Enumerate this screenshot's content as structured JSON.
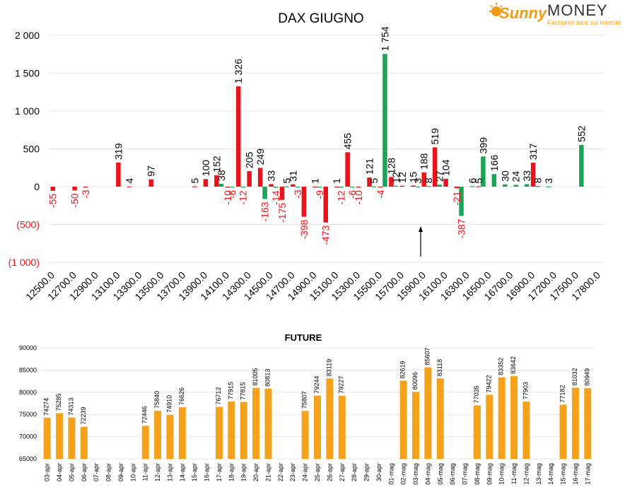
{
  "logo": {
    "brand_script": "Sunny",
    "brand_word": "MONEY",
    "tagline": "Facciamo luce sui mercati",
    "colors": {
      "orange": "#f39c12",
      "dark": "#333333"
    }
  },
  "colors": {
    "call": "#e8141b",
    "put": "#1aa457",
    "future": "#f4a11b",
    "annotation_neg": "#e8141b",
    "grid": "#e6e6e6"
  },
  "chart_data": [
    {
      "type": "bar",
      "title": "DAX GIUGNO",
      "categories": [
        "12500.0",
        "12600.0",
        "12700.0",
        "12800.0",
        "12900.0",
        "13000.0",
        "13100.0",
        "13200.0",
        "13300.0",
        "13400.0",
        "13500.0",
        "13600.0",
        "13700.0",
        "13800.0",
        "13900.0",
        "14000.0",
        "14100.0",
        "14200.0",
        "14300.0",
        "14400.0",
        "14500.0",
        "14600.0",
        "14700.0",
        "14800.0",
        "14900.0",
        "15000.0",
        "15100.0",
        "15200.0",
        "15300.0",
        "15400.0",
        "15500.0",
        "15600.0",
        "15700.0",
        "15800.0",
        "15900.0",
        "16000.0",
        "16100.0",
        "16200.0",
        "16300.0",
        "16400.0",
        "16500.0",
        "16600.0",
        "16700.0",
        "16800.0",
        "16900.0",
        "17000.0",
        "17200.0",
        "17400.0",
        "17500.0",
        "17600.0",
        "17800.0"
      ],
      "tick_labels": [
        "12500.0",
        "12700.0",
        "12900.0",
        "13100.0",
        "13300.0",
        "13500.0",
        "13700.0",
        "13900.0",
        "14100.0",
        "14300.0",
        "14500.0",
        "14700.0",
        "14900.0",
        "15100.0",
        "15300.0",
        "15500.0",
        "15700.0",
        "15900.0",
        "16100.0",
        "16300.0",
        "16500.0",
        "16700.0",
        "16900.0",
        "17200.0",
        "17500.0",
        "17800.0"
      ],
      "y_tick_labels": [
        "2 000",
        "1 500",
        "1 000",
        "500",
        "0",
        "(500)",
        "(1 000)"
      ],
      "ylim": [
        -1000,
        2000
      ],
      "series": [
        {
          "color_key": "call",
          "values": [
            -55,
            null,
            -50,
            -3,
            null,
            null,
            319,
            4,
            null,
            97,
            null,
            null,
            null,
            5,
            100,
            152,
            -10,
            1326,
            205,
            249,
            33,
            -175,
            31,
            -398,
            1,
            -473,
            1,
            455,
            -10,
            121,
            -4,
            128,
            12,
            15,
            188,
            519,
            104,
            -21,
            null,
            5,
            null,
            null,
            null,
            null,
            317,
            null,
            null,
            null,
            null,
            null,
            null
          ],
          "labels": [
            "-55",
            "",
            "-50",
            "-3",
            "",
            "",
            "319",
            "4",
            "",
            "97",
            "",
            "",
            "",
            "5",
            "100",
            "152",
            "-10",
            "1 326",
            "205",
            "249",
            "33",
            "-175",
            "31",
            "-398",
            "1",
            "-473",
            "1",
            "455",
            "-10",
            "121",
            "-4",
            "128",
            "12",
            "15",
            "188",
            "519",
            "104",
            "-21",
            "",
            "5",
            "",
            "",
            "",
            "",
            "317",
            "",
            "",
            "",
            "",
            "",
            ""
          ]
        },
        {
          "color_key": "put",
          "values": [
            null,
            null,
            null,
            null,
            null,
            null,
            null,
            null,
            null,
            null,
            null,
            null,
            null,
            null,
            null,
            38,
            -6,
            -12,
            null,
            -163,
            -14,
            5,
            -3,
            null,
            -9,
            null,
            -12,
            -6,
            null,
            5,
            1754,
            12,
            null,
            3,
            8,
            27,
            null,
            -387,
            6,
            399,
            166,
            30,
            24,
            33,
            8,
            3,
            null,
            null,
            552,
            null,
            null
          ],
          "labels": [
            "",
            "",
            "",
            "",
            "",
            "",
            "",
            "",
            "",
            "",
            "",
            "",
            "",
            "",
            "",
            "38",
            "-6",
            "-12",
            "",
            "-163",
            "-14",
            "5",
            "-3",
            "",
            "-9",
            "",
            "-12",
            "-6",
            "",
            "5",
            "1 754",
            "12",
            "",
            "3",
            "8",
            "27",
            "",
            "-387",
            "6",
            "399",
            "166",
            "30",
            "24",
            "33",
            "8",
            "3",
            "",
            "",
            "552",
            "",
            ""
          ]
        }
      ],
      "grid": true
    },
    {
      "type": "bar",
      "title": "FUTURE",
      "ylim": [
        65000,
        90000
      ],
      "y_tick_labels": [
        "90000",
        "85000",
        "80000",
        "75000",
        "70000",
        "65000"
      ],
      "categories": [
        "03-apr",
        "04-apr",
        "05-apr",
        "06-apr",
        "07-apr",
        "08-apr",
        "09-apr",
        "10-apr",
        "11-apr",
        "12-apr",
        "13-apr",
        "14-apr",
        "15-apr",
        "16-apr",
        "17-apr",
        "18-apr",
        "19-apr",
        "20-apr",
        "21-apr",
        "22-apr",
        "23-apr",
        "24-apr",
        "25-apr",
        "26-apr",
        "27-apr",
        "28-apr",
        "29-apr",
        "30-apr",
        "01-mag",
        "02-mag",
        "03-mag",
        "04-mag",
        "05-mag",
        "06-mag",
        "07-mag",
        "08-mag",
        "09-mag",
        "10-mag",
        "11-mag",
        "12-mag",
        "13-mag",
        "14-mag",
        "15-mag",
        "16-mag",
        "17-mag"
      ],
      "values": [
        74274,
        75285,
        74313,
        72239,
        null,
        null,
        null,
        null,
        72446,
        75840,
        74910,
        76626,
        null,
        null,
        76712,
        77915,
        77815,
        81005,
        80813,
        null,
        null,
        75807,
        79244,
        83119,
        79227,
        null,
        null,
        null,
        null,
        82619,
        80096,
        85607,
        83118,
        null,
        null,
        77035,
        79422,
        83352,
        83642,
        77903,
        null,
        null,
        77182,
        81032,
        80949
      ],
      "grid": true
    }
  ]
}
